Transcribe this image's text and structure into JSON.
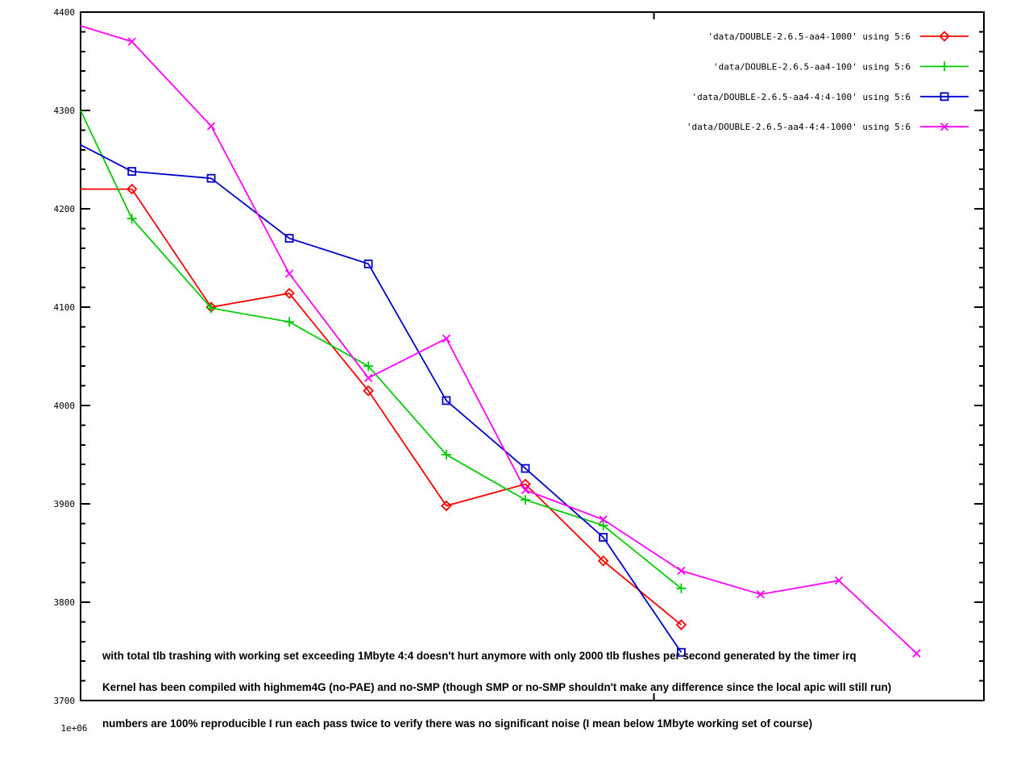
{
  "figure": {
    "background": "#ffffff",
    "axis_color": "#000000",
    "text_color": "#000000"
  },
  "chart_data": {
    "type": "line",
    "title": "",
    "xlabel": "",
    "ylabel": "",
    "grid": false,
    "legend_position": "top-right-inside",
    "x_axis": {
      "scale": "log",
      "min": 1000000,
      "max": 2980000,
      "major_ticks": [
        {
          "value": 1000000,
          "label": "1e+06"
        }
      ],
      "minor_ticks": [
        2000000
      ]
    },
    "y_axis": {
      "min": 3700,
      "max": 4400,
      "major_step": 100,
      "minor_step": 20,
      "labels": [
        "3700",
        "3800",
        "3900",
        "4000",
        "4100",
        "4200",
        "4300",
        "4400"
      ]
    },
    "series": [
      {
        "name": "'data/DOUBLE-2.6.5-aa4-1000' using 5:6",
        "color": "#ff0000",
        "marker": "diamond",
        "points": [
          [
            1000000,
            4220
          ],
          [
            1064000,
            4220
          ],
          [
            1171000,
            4100
          ],
          [
            1287000,
            4114
          ],
          [
            1416000,
            4015
          ],
          [
            1556000,
            3898
          ],
          [
            1712000,
            3920
          ],
          [
            1881000,
            3842
          ],
          [
            2067000,
            3777
          ]
        ]
      },
      {
        "name": "'data/DOUBLE-2.6.5-aa4-100' using 5:6",
        "color": "#00cc00",
        "marker": "plus",
        "points": [
          [
            1000000,
            4300
          ],
          [
            1064000,
            4190
          ],
          [
            1171000,
            4099
          ],
          [
            1287000,
            4085
          ],
          [
            1416000,
            4040
          ],
          [
            1556000,
            3950
          ],
          [
            1712000,
            3904
          ],
          [
            1881000,
            3878
          ],
          [
            2067000,
            3814
          ]
        ]
      },
      {
        "name": "'data/DOUBLE-2.6.5-aa4-4:4-100' using 5:6",
        "color": "#0000cd",
        "marker": "square",
        "points": [
          [
            1000000,
            4265
          ],
          [
            1064000,
            4238
          ],
          [
            1171000,
            4231
          ],
          [
            1287000,
            4170
          ],
          [
            1416000,
            4144
          ],
          [
            1556000,
            4005
          ],
          [
            1712000,
            3936
          ],
          [
            1881000,
            3866
          ],
          [
            2067000,
            3749
          ]
        ]
      },
      {
        "name": "'data/DOUBLE-2.6.5-aa4-4:4-1000' using 5:6",
        "color": "#ff00ff",
        "marker": "x",
        "points": [
          [
            1000000,
            4386
          ],
          [
            1064000,
            4370
          ],
          [
            1171000,
            4284
          ],
          [
            1287000,
            4134
          ],
          [
            1416000,
            4028
          ],
          [
            1556000,
            4068
          ],
          [
            1712000,
            3914
          ],
          [
            1881000,
            3884
          ],
          [
            2067000,
            3832
          ],
          [
            2275000,
            3808
          ],
          [
            2501000,
            3822
          ],
          [
            2747000,
            3748
          ]
        ]
      }
    ]
  },
  "annotations": {
    "line1": "with total tlb trashing with working set exceeding 1Mbyte 4:4 doesn't hurt anymore with only 2000 tlb flushes per second generated by the timer irq",
    "line2": "Kernel has been compiled with highmem4G (no-PAE) and no-SMP (though SMP or no-SMP shouldn't make any difference since the local apic will still run)",
    "line3": "numbers are 100% reproducible I run each pass twice to verify there was no significant noise (I mean below 1Mbyte working set of course)"
  }
}
